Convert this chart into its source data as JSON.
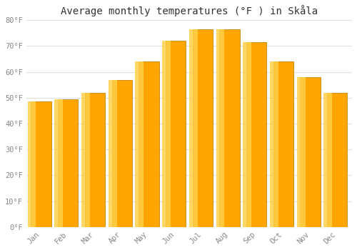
{
  "title": "Average monthly temperatures (°F ) in Skåla",
  "months": [
    "Jan",
    "Feb",
    "Mar",
    "Apr",
    "May",
    "Jun",
    "Jul",
    "Aug",
    "Sep",
    "Oct",
    "Nov",
    "Dec"
  ],
  "values": [
    48.5,
    49.5,
    52,
    57,
    64,
    72,
    76.5,
    76.5,
    71.5,
    64,
    58,
    52
  ],
  "bar_color_main": "#FFA500",
  "bar_color_light": "#FFD04A",
  "bar_color_dark": "#E08800",
  "bar_edge_color": "#C8850A",
  "ylim": [
    0,
    80
  ],
  "yticks": [
    0,
    10,
    20,
    30,
    40,
    50,
    60,
    70,
    80
  ],
  "ytick_labels": [
    "0°F",
    "10°F",
    "20°F",
    "30°F",
    "40°F",
    "50°F",
    "60°F",
    "70°F",
    "80°F"
  ],
  "background_color": "#ffffff",
  "plot_bg_color": "#ffffff",
  "grid_color": "#e0e0e0",
  "title_fontsize": 10,
  "tick_fontsize": 7.5,
  "tick_color": "#888888",
  "title_color": "#333333"
}
